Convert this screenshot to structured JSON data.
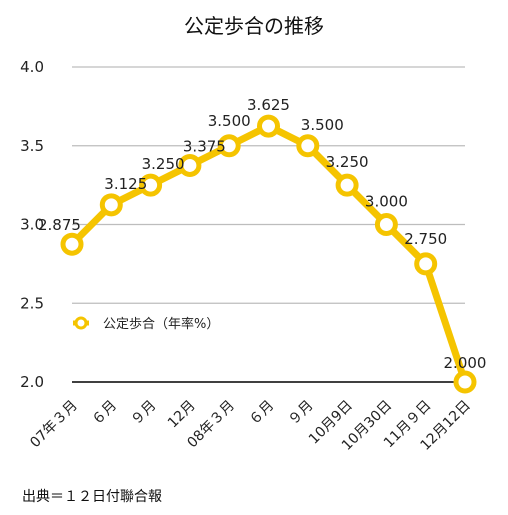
{
  "title": "公定歩合の推移",
  "source_note": "出典＝１２日付聯合報",
  "colors": {
    "series": "#F5C400",
    "grid": "#bdbdbd",
    "baseline": "#000000",
    "marker_fill": "#ffffff"
  },
  "chart_data": {
    "type": "line",
    "title": "公定歩合の推移",
    "xlabel": "",
    "ylabel": "",
    "ylim": [
      2.0,
      4.0
    ],
    "yticks": [
      "2.0",
      "2.5",
      "3.0",
      "3.5",
      "4.0"
    ],
    "grid": true,
    "legend_position": "center-left",
    "categories": [
      "07年３月",
      "６月",
      "９月",
      "12月",
      "08年３月",
      "６月",
      "９月",
      "10月9日",
      "10月30日",
      "11月９日",
      "12月12日"
    ],
    "series": [
      {
        "name": "公定歩合（年率%）",
        "values": [
          2.875,
          3.125,
          3.25,
          3.375,
          3.5,
          3.625,
          3.5,
          3.25,
          3.0,
          2.75,
          2.0
        ],
        "labels": [
          "2.875",
          "3.125",
          "3.250",
          "3.375",
          "3.500",
          "3.625",
          "3.500",
          "3.250",
          "3.000",
          "2.750",
          "2.000"
        ]
      }
    ]
  }
}
